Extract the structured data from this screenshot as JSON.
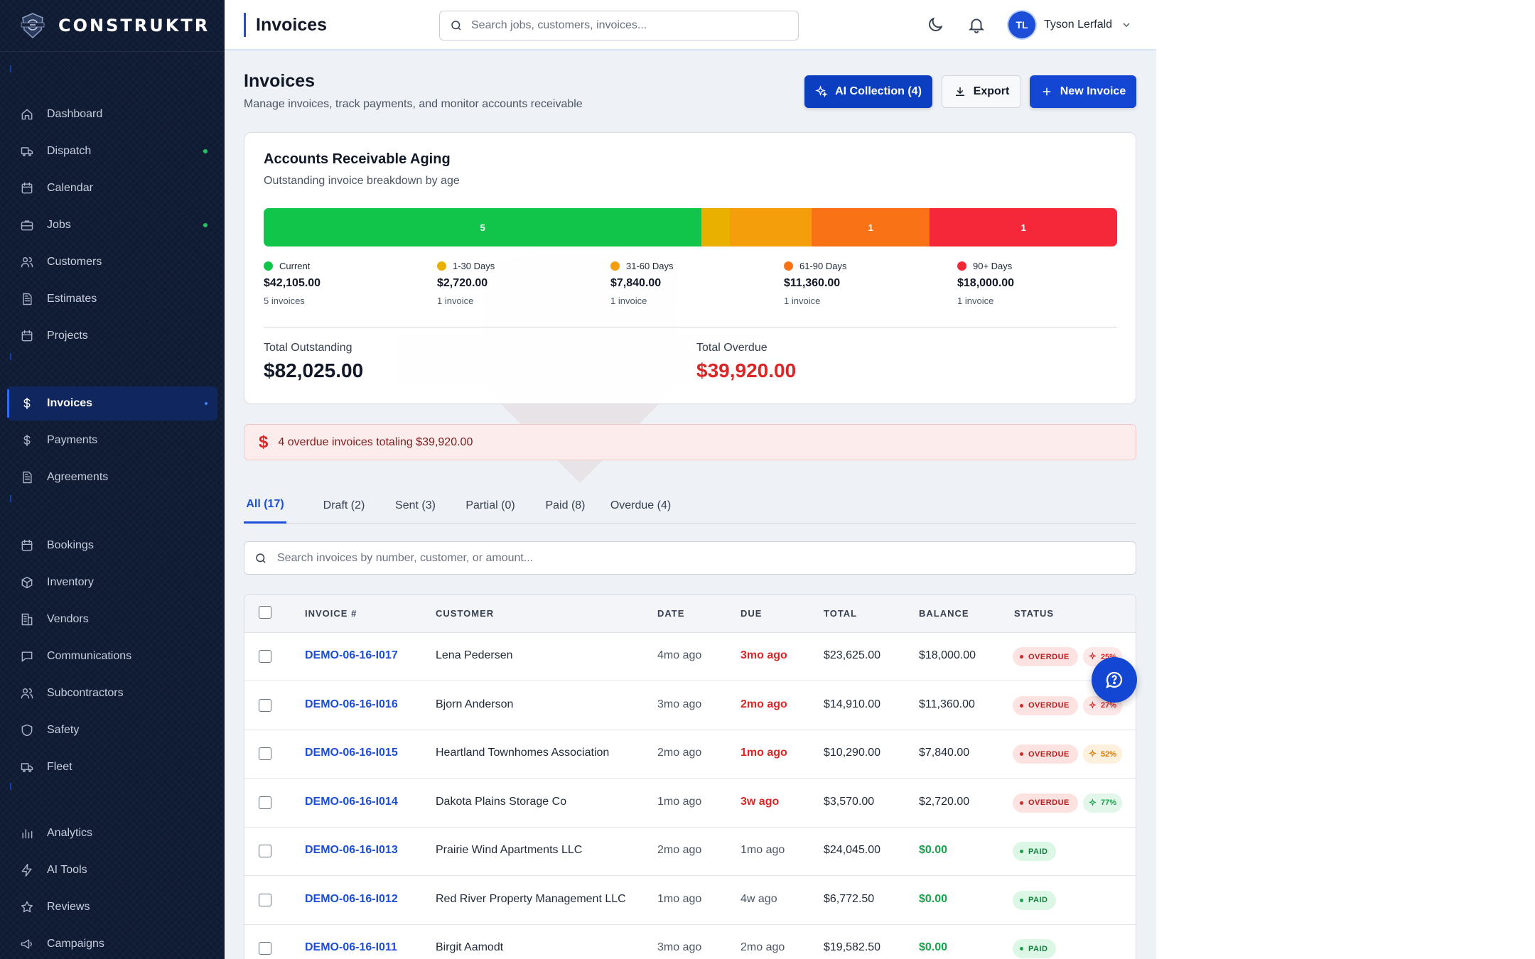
{
  "brand": {
    "name": "CONSTRUKTR"
  },
  "sidebar": {
    "items": [
      {
        "label": "Dashboard",
        "icon": "home-icon",
        "dot": false,
        "active": false
      },
      {
        "label": "Dispatch",
        "icon": "truck-icon",
        "dot": true,
        "active": false
      },
      {
        "label": "Calendar",
        "icon": "calendar-icon",
        "dot": false,
        "active": false
      },
      {
        "label": "Jobs",
        "icon": "briefcase-icon",
        "dot": true,
        "active": false
      },
      {
        "label": "Customers",
        "icon": "users-icon",
        "dot": false,
        "active": false
      },
      {
        "label": "Estimates",
        "icon": "document-icon",
        "dot": false,
        "active": false
      },
      {
        "label": "Projects",
        "icon": "calendar-icon",
        "dot": false,
        "active": false
      },
      {
        "label": "Invoices",
        "icon": "dollar-icon",
        "dot": true,
        "active": true
      },
      {
        "label": "Payments",
        "icon": "dollar-icon",
        "dot": false,
        "active": false
      },
      {
        "label": "Agreements",
        "icon": "document-icon",
        "dot": false,
        "active": false
      },
      {
        "label": "Bookings",
        "icon": "calendar-icon",
        "dot": false,
        "active": false
      },
      {
        "label": "Inventory",
        "icon": "box-icon",
        "dot": false,
        "active": false
      },
      {
        "label": "Vendors",
        "icon": "building-icon",
        "dot": false,
        "active": false
      },
      {
        "label": "Communications",
        "icon": "message-icon",
        "dot": false,
        "active": false
      },
      {
        "label": "Subcontractors",
        "icon": "users-icon",
        "dot": false,
        "active": false
      },
      {
        "label": "Safety",
        "icon": "shield-icon",
        "dot": false,
        "active": false
      },
      {
        "label": "Fleet",
        "icon": "truck-icon",
        "dot": false,
        "active": false
      },
      {
        "label": "Analytics",
        "icon": "bar-chart-icon",
        "dot": false,
        "active": false
      },
      {
        "label": "AI Tools",
        "icon": "bolt-icon",
        "dot": false,
        "active": false
      },
      {
        "label": "Reviews",
        "icon": "star-icon",
        "dot": false,
        "active": false
      },
      {
        "label": "Campaigns",
        "icon": "megaphone-icon",
        "dot": false,
        "active": false
      }
    ]
  },
  "topbar": {
    "title": "Invoices",
    "search_placeholder": "Search jobs, customers, invoices...",
    "user": {
      "initials": "TL",
      "name": "Tyson Lerfald"
    }
  },
  "header": {
    "title": "Invoices",
    "subtitle": "Manage invoices, track payments, and monitor accounts receivable",
    "ai_button": "AI Collection (4)",
    "export_button": "Export",
    "new_button": "New Invoice"
  },
  "aging": {
    "title": "Accounts Receivable Aging",
    "subtitle": "Outstanding invoice breakdown by age",
    "bar_counts": [
      "5",
      "",
      "",
      "1",
      "1"
    ],
    "buckets": [
      {
        "label": "Current",
        "amount": "$42,105.00",
        "count": "5 invoices",
        "value": 42105,
        "color": "#10c549"
      },
      {
        "label": "1-30 Days",
        "amount": "$2,720.00",
        "count": "1 invoice",
        "value": 2720,
        "color": "#e9b000"
      },
      {
        "label": "31-60 Days",
        "amount": "$7,840.00",
        "count": "1 invoice",
        "value": 7840,
        "color": "#f59e0b"
      },
      {
        "label": "61-90 Days",
        "amount": "$11,360.00",
        "count": "1 invoice",
        "value": 11360,
        "color": "#f97316"
      },
      {
        "label": "90+ Days",
        "amount": "$18,000.00",
        "count": "1 invoice",
        "value": 18000,
        "color": "#f5283a"
      }
    ],
    "total_outstanding_label": "Total Outstanding",
    "total_outstanding": "$82,025.00",
    "total_overdue_label": "Total Overdue",
    "total_overdue": "$39,920.00"
  },
  "alert": {
    "text": "4 overdue invoices totaling $39,920.00"
  },
  "tabs": [
    "All (17)",
    "Draft (2)",
    "Sent (3)",
    "Partial (0)",
    "Paid (8)",
    "Overdue (4)"
  ],
  "invoice_search_placeholder": "Search invoices by number, customer, or amount...",
  "table": {
    "headers": [
      "INVOICE #",
      "CUSTOMER",
      "DATE",
      "DUE",
      "TOTAL",
      "BALANCE",
      "STATUS"
    ],
    "rows": [
      {
        "invoice": "DEMO-06-16-I017",
        "customer": "Lena Pedersen",
        "date": "4mo ago",
        "due": "3mo ago",
        "due_overdue": true,
        "total": "$23,625.00",
        "balance": "$18,000.00",
        "balance_paid": false,
        "status": "OVERDUE",
        "score": "25%",
        "score_color": "#dc2626",
        "score_bg": "#fde8e8"
      },
      {
        "invoice": "DEMO-06-16-I016",
        "customer": "Bjorn Anderson",
        "date": "3mo ago",
        "due": "2mo ago",
        "due_overdue": true,
        "total": "$14,910.00",
        "balance": "$11,360.00",
        "balance_paid": false,
        "status": "OVERDUE",
        "score": "27%",
        "score_color": "#dc2626",
        "score_bg": "#fde8e8"
      },
      {
        "invoice": "DEMO-06-16-I015",
        "customer": "Heartland Townhomes Association",
        "date": "2mo ago",
        "due": "1mo ago",
        "due_overdue": true,
        "total": "$10,290.00",
        "balance": "$7,840.00",
        "balance_paid": false,
        "status": "OVERDUE",
        "score": "52%",
        "score_color": "#d97706",
        "score_bg": "#fdf1de"
      },
      {
        "invoice": "DEMO-06-16-I014",
        "customer": "Dakota Plains Storage Co",
        "date": "1mo ago",
        "due": "3w ago",
        "due_overdue": true,
        "total": "$3,570.00",
        "balance": "$2,720.00",
        "balance_paid": false,
        "status": "OVERDUE",
        "score": "77%",
        "score_color": "#16a34a",
        "score_bg": "#e3f6ea"
      },
      {
        "invoice": "DEMO-06-16-I013",
        "customer": "Prairie Wind Apartments LLC",
        "date": "2mo ago",
        "due": "1mo ago",
        "due_overdue": false,
        "total": "$24,045.00",
        "balance": "$0.00",
        "balance_paid": true,
        "status": "PAID",
        "score": "",
        "score_color": "",
        "score_bg": ""
      },
      {
        "invoice": "DEMO-06-16-I012",
        "customer": "Red River Property Management LLC",
        "date": "1mo ago",
        "due": "4w ago",
        "due_overdue": false,
        "total": "$6,772.50",
        "balance": "$0.00",
        "balance_paid": true,
        "status": "PAID",
        "score": "",
        "score_color": "",
        "score_bg": ""
      },
      {
        "invoice": "DEMO-06-16-I011",
        "customer": "Birgit Aamodt",
        "date": "3mo ago",
        "due": "2mo ago",
        "due_overdue": false,
        "total": "$19,582.50",
        "balance": "$0.00",
        "balance_paid": true,
        "status": "PAID",
        "score": "",
        "score_color": "",
        "score_bg": ""
      }
    ]
  }
}
